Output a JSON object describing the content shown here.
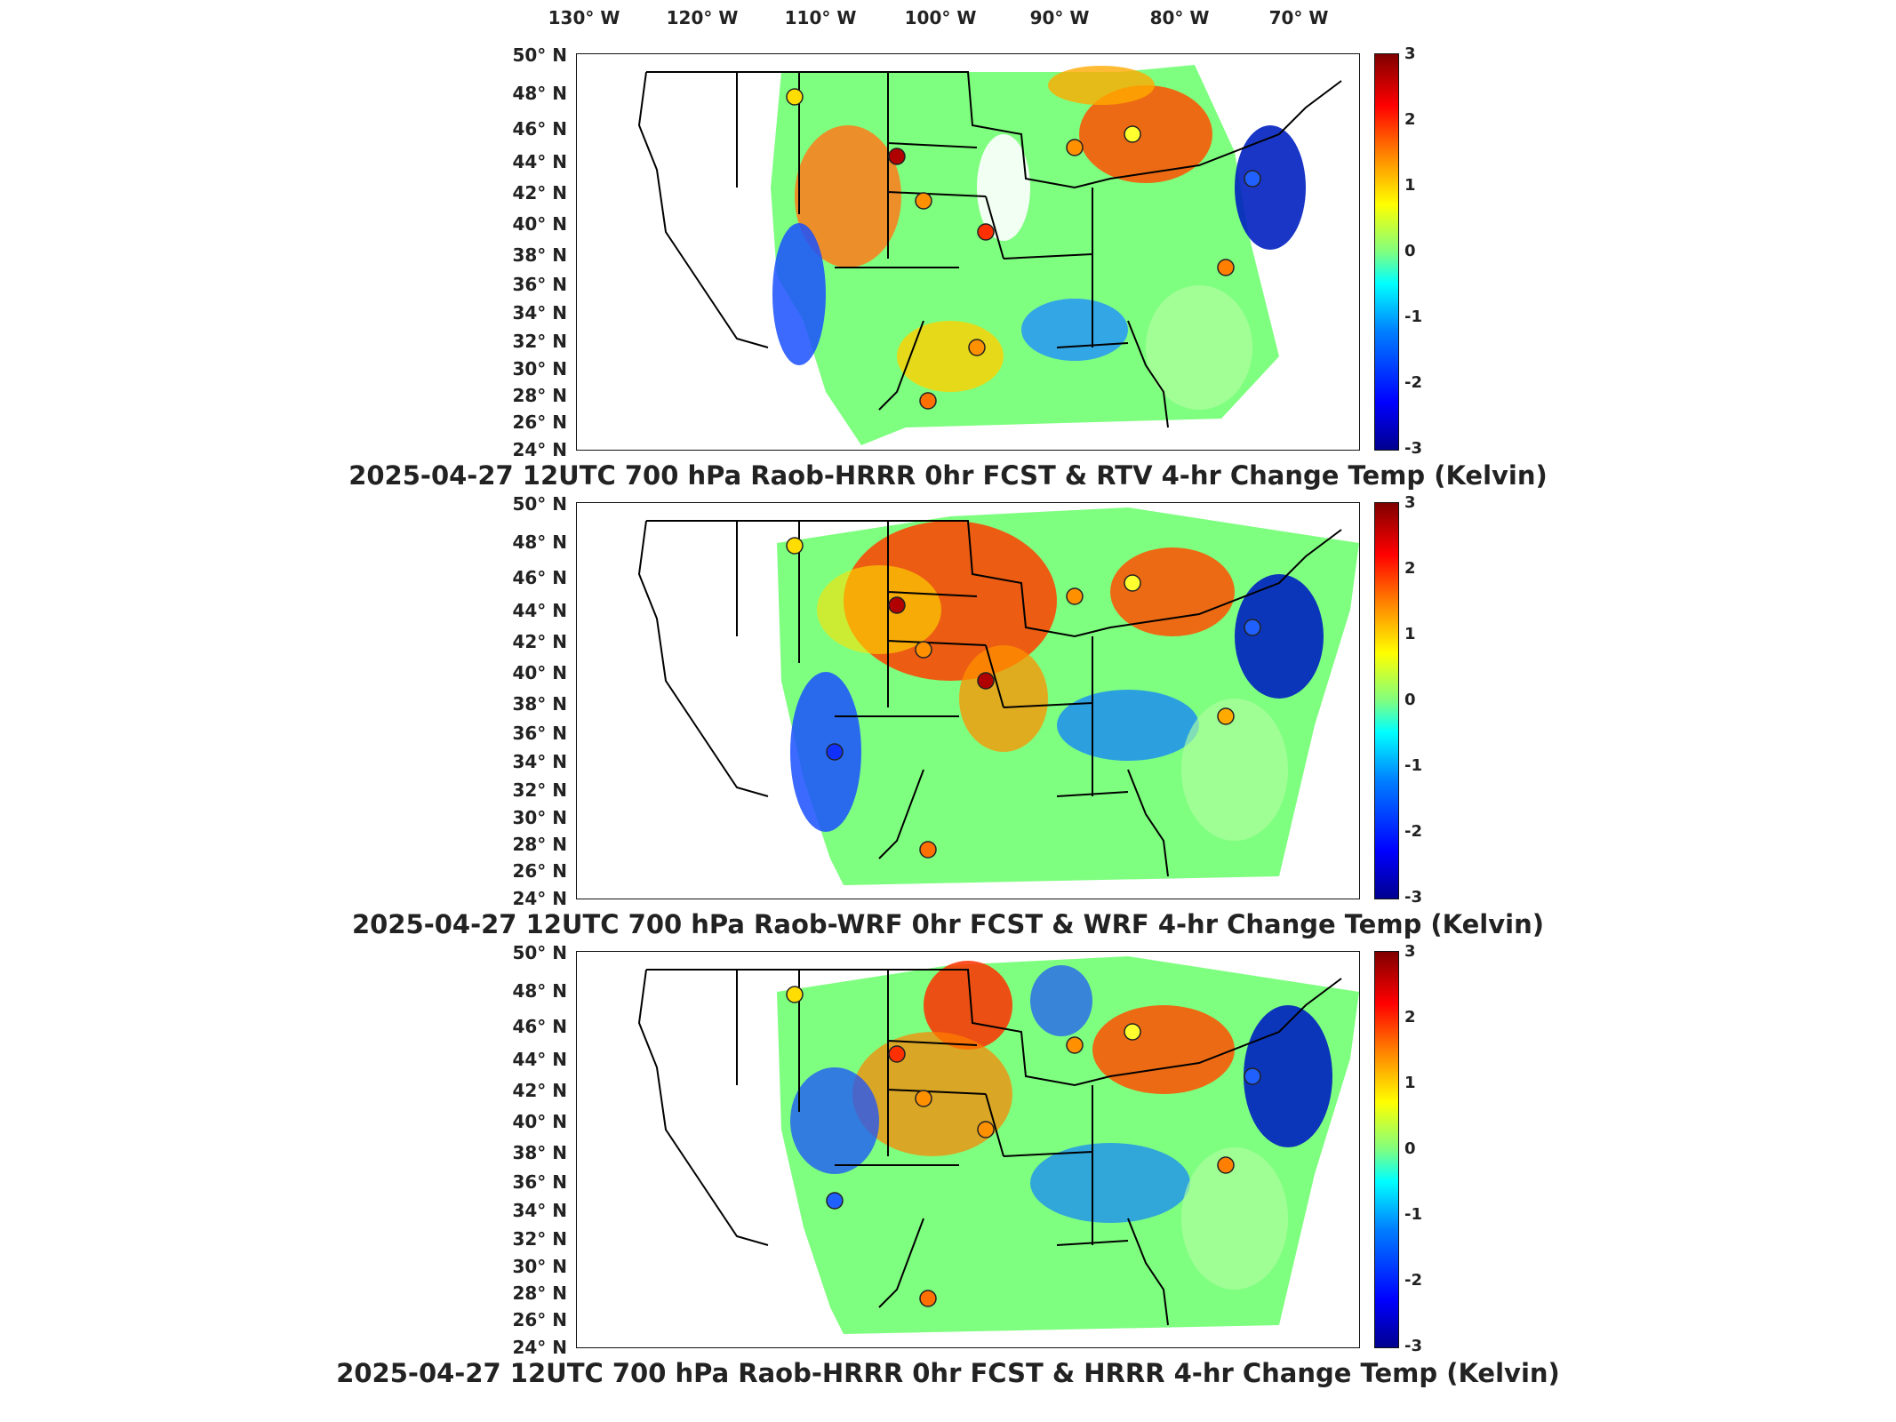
{
  "longitude_labels": [
    "130° W",
    "120° W",
    "110° W",
    "100° W",
    "90° W",
    "80° W",
    "70° W"
  ],
  "latitude_labels": [
    "50° N",
    "48° N",
    "46° N",
    "44° N",
    "42° N",
    "40° N",
    "38° N",
    "36° N",
    "34° N",
    "32° N",
    "30° N",
    "28° N",
    "26° N",
    "24° N"
  ],
  "colorbar_ticks": [
    "3",
    "2",
    "1",
    "0",
    "-1",
    "-2",
    "-3"
  ],
  "colors": {
    "field_dark_blue": "#00008f",
    "field_blue": "#0064ff",
    "field_cyan": "#00e6ff",
    "field_green": "#7fff80",
    "field_yellow": "#ffff00",
    "field_orange": "#ff8c00",
    "field_red": "#ff2000",
    "field_dark_red": "#8b0000",
    "state_lines": "#000000"
  },
  "panels": [
    {
      "title": "2025-04-27 12UTC 700 hPa Raob-HRRR 0hr FCST & RTV 4-hr Change Temp (Kelvin)"
    },
    {
      "title": "2025-04-27 12UTC 700 hPa Raob-WRF 0hr FCST & WRF 4-hr Change Temp (Kelvin)"
    },
    {
      "title": "2025-04-27 12UTC 700 hPa Raob-HRRR 0hr FCST & HRRR 4-hr Change Temp (Kelvin)"
    }
  ]
}
